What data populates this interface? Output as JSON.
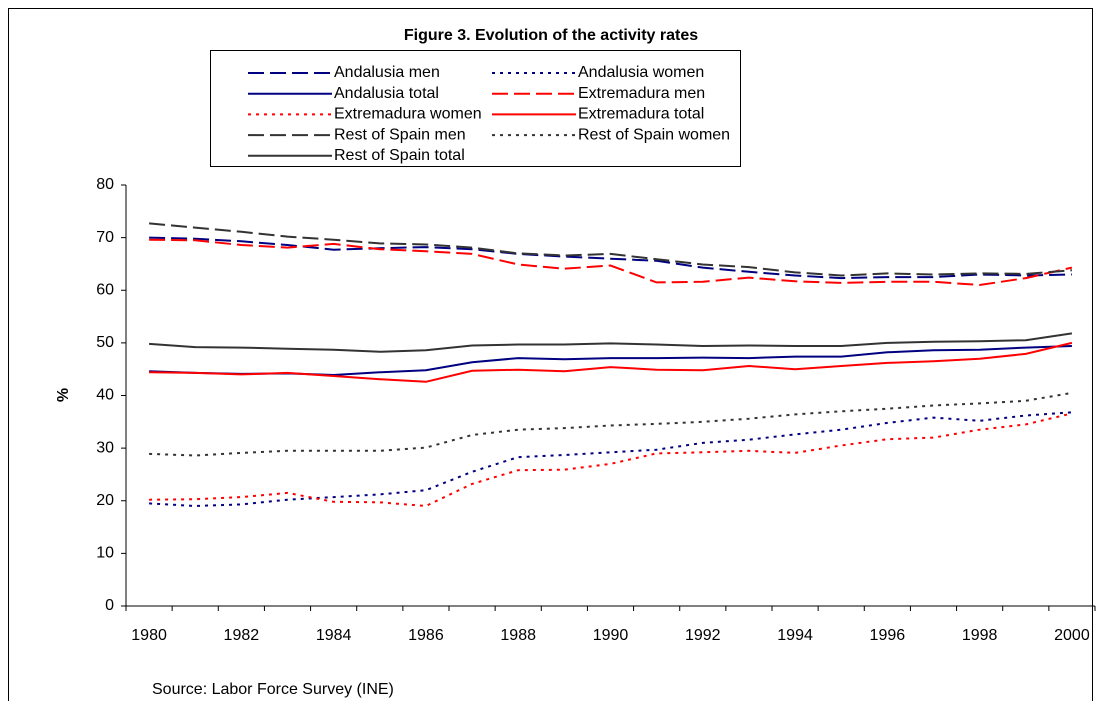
{
  "chart_data": {
    "type": "line",
    "title": "Figure 3. Evolution of the activity rates",
    "ylabel": "%",
    "source": "Source: Labor Force Survey (INE)",
    "categories": [
      "1980",
      null,
      "1982",
      null,
      "1984",
      null,
      "1986",
      null,
      "1988",
      null,
      "1990",
      null,
      "1992",
      null,
      "1994",
      null,
      "1996",
      null,
      "1998",
      null,
      "2000"
    ],
    "ylim": [
      0,
      80
    ],
    "yticks": [
      0,
      10,
      20,
      30,
      40,
      50,
      60,
      70,
      80
    ],
    "legend": "top",
    "series": [
      {
        "name": "Andalusia men",
        "color": "#000080",
        "dash": "dash",
        "values": [
          70,
          69.8,
          69.3,
          68.6,
          67.7,
          68,
          68.2,
          67.8,
          66.9,
          66.4,
          66,
          65.6,
          64.3,
          63.5,
          62.8,
          62.3,
          62.5,
          62.5,
          63,
          62.8,
          63
        ]
      },
      {
        "name": "Andalusia women",
        "color": "#000080",
        "dash": "dot",
        "values": [
          19.5,
          19,
          19.3,
          20.2,
          20.7,
          21.2,
          22,
          25.5,
          28.3,
          28.7,
          29.2,
          29.7,
          31,
          31.6,
          32.6,
          33.5,
          34.8,
          35.8,
          35.2,
          36.2,
          36.8
        ]
      },
      {
        "name": "Andalusia total",
        "color": "#000080",
        "dash": "solid",
        "values": [
          44.6,
          44.3,
          44.1,
          44.2,
          43.9,
          44.4,
          44.8,
          46.3,
          47.1,
          46.9,
          47.1,
          47.1,
          47.2,
          47.1,
          47.4,
          47.4,
          48.2,
          48.6,
          48.7,
          49.1,
          49.4
        ]
      },
      {
        "name": "Extremadura men",
        "color": "#ff0000",
        "dash": "dash",
        "values": [
          69.6,
          69.5,
          68.6,
          68.1,
          68.8,
          67.8,
          67.4,
          66.9,
          64.9,
          64.1,
          64.7,
          61.5,
          61.6,
          62.4,
          61.7,
          61.4,
          61.6,
          61.6,
          61,
          62.3,
          64.3
        ]
      },
      {
        "name": "Extremadura women",
        "color": "#ff0000",
        "dash": "dot",
        "values": [
          20.2,
          20.3,
          20.7,
          21.5,
          19.8,
          19.7,
          19,
          23.2,
          25.8,
          25.9,
          27,
          29,
          29.2,
          29.5,
          29.1,
          30.5,
          31.7,
          32,
          33.5,
          34.5,
          36.6
        ]
      },
      {
        "name": "Extremadura total",
        "color": "#ff0000",
        "dash": "solid",
        "values": [
          44.4,
          44.3,
          44,
          44.3,
          43.7,
          43.1,
          42.6,
          44.7,
          44.9,
          44.6,
          45.4,
          44.9,
          44.8,
          45.6,
          45,
          45.6,
          46.2,
          46.5,
          47,
          47.9,
          50
        ]
      },
      {
        "name": "Rest of Spain men",
        "color": "#333333",
        "dash": "dash",
        "values": [
          72.7,
          71.9,
          71.1,
          70.2,
          69.6,
          68.9,
          68.7,
          68.1,
          67,
          66.6,
          66.9,
          65.9,
          64.9,
          64.4,
          63.4,
          62.8,
          63.2,
          63,
          63.2,
          63.1,
          63.8
        ]
      },
      {
        "name": "Rest of Spain women",
        "color": "#333333",
        "dash": "dot",
        "values": [
          28.9,
          28.6,
          29.1,
          29.5,
          29.5,
          29.5,
          30.1,
          32.5,
          33.5,
          33.8,
          34.3,
          34.6,
          35,
          35.6,
          36.4,
          37,
          37.5,
          38.1,
          38.5,
          39,
          40.5
        ]
      },
      {
        "name": "Rest of Spain total",
        "color": "#333333",
        "dash": "solid",
        "values": [
          49.8,
          49.2,
          49.1,
          48.9,
          48.7,
          48.3,
          48.6,
          49.5,
          49.7,
          49.7,
          49.9,
          49.7,
          49.4,
          49.5,
          49.4,
          49.4,
          50,
          50.2,
          50.3,
          50.5,
          51.8
        ]
      }
    ]
  }
}
